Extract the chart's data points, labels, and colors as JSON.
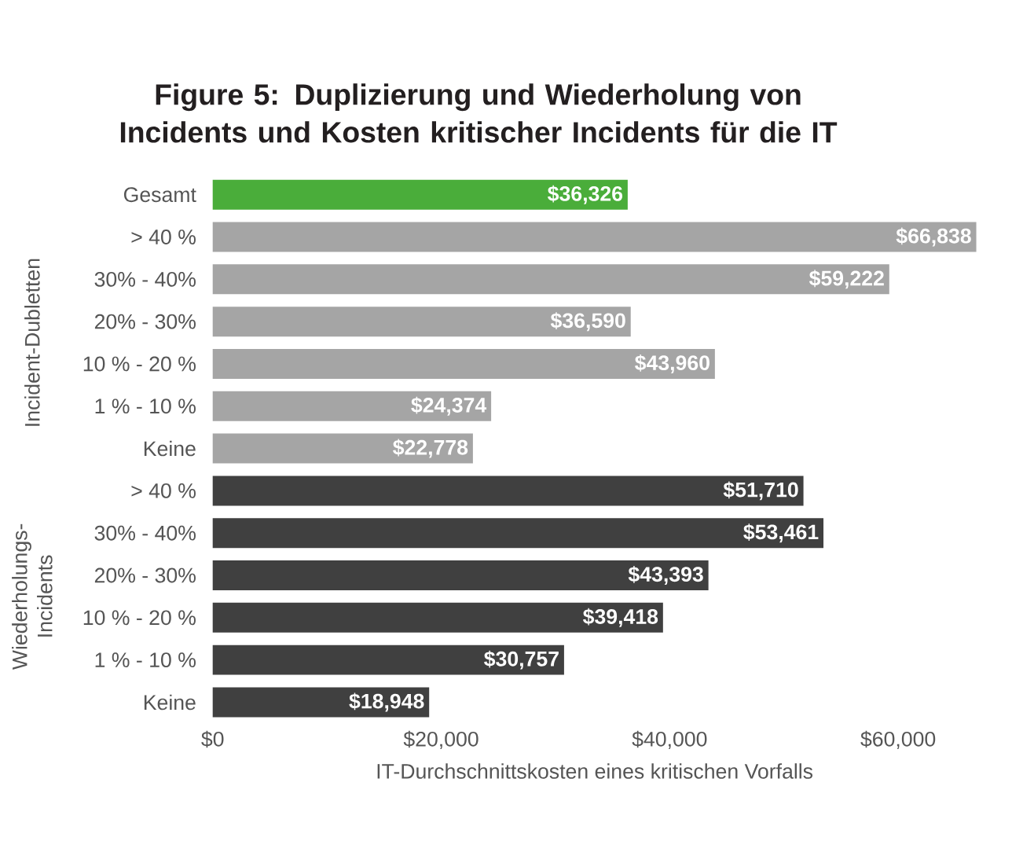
{
  "chart_data": {
    "type": "bar",
    "orientation": "horizontal",
    "title": "Figure 5: Duplizierung und Wiederholung von Incidents und Kosten kritischer Incidents für die IT",
    "xlabel": "IT-Durchschnittskosten eines kritischen Vorfalls",
    "categories": [
      "Gesamt",
      "> 40 %",
      "30% - 40%",
      "20% - 30%",
      "10 % - 20 %",
      "1 % - 10 %",
      "Keine",
      "> 40 %",
      "30% - 40%",
      "20% - 30%",
      "10 % - 20 %",
      "1 % - 10 %",
      "Keine"
    ],
    "values": [
      36326,
      66838,
      59222,
      36590,
      43960,
      24374,
      22778,
      51710,
      53461,
      43393,
      39418,
      30757,
      18948
    ],
    "value_labels": [
      "$36,326",
      "$66,838",
      "$59,222",
      "$36,590",
      "$43,960",
      "$24,374",
      "$22,778",
      "$51,710",
      "$53,461",
      "$43,393",
      "$39,418",
      "$30,757",
      "$18,948"
    ],
    "colors": [
      "#4aad3a",
      "#a5a5a5",
      "#a5a5a5",
      "#a5a5a5",
      "#a5a5a5",
      "#a5a5a5",
      "#a5a5a5",
      "#404040",
      "#404040",
      "#404040",
      "#404040",
      "#404040",
      "#404040"
    ],
    "xlim": [
      0,
      66838
    ],
    "xticks": [
      {
        "value": 0,
        "label": "$0"
      },
      {
        "value": 20000,
        "label": "$20,000"
      },
      {
        "value": 40000,
        "label": "$40,000"
      },
      {
        "value": 60000,
        "label": "$60,000"
      }
    ],
    "annotations": [
      "Incident-Dubletten",
      "Wiederholungs-Incidents"
    ],
    "grid": false
  }
}
